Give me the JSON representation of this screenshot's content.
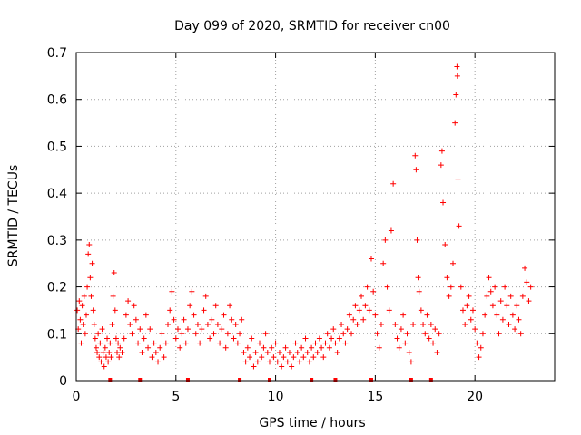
{
  "chart_data": {
    "type": "scatter",
    "title": "Day 099 of 2020, SRMTID for receiver cn00",
    "xlabel": "GPS time / hours",
    "ylabel": "SRMTID / TECUs",
    "xlim": [
      0,
      24
    ],
    "ylim": [
      0,
      0.7
    ],
    "xticks": [
      0,
      5,
      10,
      15,
      20
    ],
    "yticks": [
      0,
      0.1,
      0.2,
      0.3,
      0.4,
      0.5,
      0.6,
      0.7
    ],
    "ytick_labels": [
      "0",
      "0.1",
      "0.2",
      "0.3",
      "0.4",
      "0.5",
      "0.6",
      "0.7"
    ],
    "grid": true,
    "marker": "+",
    "series_color": "#ff0000",
    "series": [
      {
        "name": "SRMTID",
        "points": [
          [
            0.05,
            0.15
          ],
          [
            0.1,
            0.11
          ],
          [
            0.15,
            0.17
          ],
          [
            0.2,
            0.13
          ],
          [
            0.25,
            0.08
          ],
          [
            0.3,
            0.16
          ],
          [
            0.35,
            0.12
          ],
          [
            0.4,
            0.18
          ],
          [
            0.45,
            0.1
          ],
          [
            0.5,
            0.14
          ],
          [
            0.55,
            0.2
          ],
          [
            0.6,
            0.27
          ],
          [
            0.65,
            0.29
          ],
          [
            0.7,
            0.22
          ],
          [
            0.75,
            0.18
          ],
          [
            0.8,
            0.25
          ],
          [
            0.85,
            0.15
          ],
          [
            0.9,
            0.12
          ],
          [
            0.95,
            0.09
          ],
          [
            1.0,
            0.07
          ],
          [
            1.05,
            0.06
          ],
          [
            1.1,
            0.1
          ],
          [
            1.15,
            0.05
          ],
          [
            1.2,
            0.08
          ],
          [
            1.25,
            0.04
          ],
          [
            1.3,
            0.11
          ],
          [
            1.35,
            0.06
          ],
          [
            1.4,
            0.03
          ],
          [
            1.45,
            0.07
          ],
          [
            1.5,
            0.05
          ],
          [
            1.55,
            0.09
          ],
          [
            1.6,
            0.04
          ],
          [
            1.65,
            0.06
          ],
          [
            1.7,
            0.08
          ],
          [
            1.75,
            0.05
          ],
          [
            1.8,
            0.12
          ],
          [
            1.85,
            0.18
          ],
          [
            1.9,
            0.23
          ],
          [
            1.95,
            0.15
          ],
          [
            2.0,
            0.09
          ],
          [
            2.05,
            0.06
          ],
          [
            2.1,
            0.08
          ],
          [
            2.15,
            0.05
          ],
          [
            2.2,
            0.07
          ],
          [
            2.3,
            0.06
          ],
          [
            2.4,
            0.09
          ],
          [
            2.5,
            0.14
          ],
          [
            2.6,
            0.17
          ],
          [
            2.7,
            0.12
          ],
          [
            2.8,
            0.1
          ],
          [
            2.9,
            0.16
          ],
          [
            3.0,
            0.13
          ],
          [
            3.1,
            0.08
          ],
          [
            3.2,
            0.11
          ],
          [
            3.3,
            0.06
          ],
          [
            3.4,
            0.09
          ],
          [
            3.5,
            0.14
          ],
          [
            3.6,
            0.07
          ],
          [
            3.7,
            0.11
          ],
          [
            3.8,
            0.05
          ],
          [
            3.9,
            0.08
          ],
          [
            4.0,
            0.06
          ],
          [
            4.1,
            0.04
          ],
          [
            4.2,
            0.07
          ],
          [
            4.3,
            0.1
          ],
          [
            4.4,
            0.05
          ],
          [
            4.5,
            0.08
          ],
          [
            4.6,
            0.12
          ],
          [
            4.7,
            0.15
          ],
          [
            4.8,
            0.19
          ],
          [
            4.9,
            0.13
          ],
          [
            5.0,
            0.09
          ],
          [
            5.1,
            0.11
          ],
          [
            5.2,
            0.07
          ],
          [
            5.3,
            0.1
          ],
          [
            5.4,
            0.13
          ],
          [
            5.5,
            0.08
          ],
          [
            5.6,
            0.11
          ],
          [
            5.7,
            0.16
          ],
          [
            5.8,
            0.19
          ],
          [
            5.9,
            0.14
          ],
          [
            6.0,
            0.1
          ],
          [
            6.1,
            0.12
          ],
          [
            6.2,
            0.08
          ],
          [
            6.3,
            0.11
          ],
          [
            6.4,
            0.15
          ],
          [
            6.5,
            0.18
          ],
          [
            6.6,
            0.12
          ],
          [
            6.7,
            0.09
          ],
          [
            6.8,
            0.13
          ],
          [
            6.9,
            0.1
          ],
          [
            7.0,
            0.16
          ],
          [
            7.1,
            0.12
          ],
          [
            7.2,
            0.08
          ],
          [
            7.3,
            0.11
          ],
          [
            7.4,
            0.14
          ],
          [
            7.5,
            0.07
          ],
          [
            7.6,
            0.1
          ],
          [
            7.7,
            0.16
          ],
          [
            7.8,
            0.13
          ],
          [
            7.9,
            0.09
          ],
          [
            8.0,
            0.12
          ],
          [
            8.1,
            0.08
          ],
          [
            8.2,
            0.1
          ],
          [
            8.3,
            0.13
          ],
          [
            8.4,
            0.06
          ],
          [
            8.5,
            0.04
          ],
          [
            8.6,
            0.07
          ],
          [
            8.7,
            0.05
          ],
          [
            8.8,
            0.09
          ],
          [
            8.9,
            0.03
          ],
          [
            9.0,
            0.06
          ],
          [
            9.1,
            0.04
          ],
          [
            9.2,
            0.08
          ],
          [
            9.3,
            0.05
          ],
          [
            9.4,
            0.07
          ],
          [
            9.5,
            0.1
          ],
          [
            9.6,
            0.06
          ],
          [
            9.7,
            0.04
          ],
          [
            9.8,
            0.07
          ],
          [
            9.9,
            0.05
          ],
          [
            10.0,
            0.08
          ],
          [
            10.1,
            0.04
          ],
          [
            10.2,
            0.06
          ],
          [
            10.3,
            0.03
          ],
          [
            10.4,
            0.05
          ],
          [
            10.5,
            0.07
          ],
          [
            10.6,
            0.04
          ],
          [
            10.7,
            0.06
          ],
          [
            10.8,
            0.03
          ],
          [
            10.9,
            0.05
          ],
          [
            11.0,
            0.08
          ],
          [
            11.1,
            0.06
          ],
          [
            11.2,
            0.04
          ],
          [
            11.3,
            0.07
          ],
          [
            11.4,
            0.05
          ],
          [
            11.5,
            0.09
          ],
          [
            11.6,
            0.06
          ],
          [
            11.7,
            0.04
          ],
          [
            11.8,
            0.07
          ],
          [
            11.9,
            0.05
          ],
          [
            12.0,
            0.08
          ],
          [
            12.1,
            0.06
          ],
          [
            12.2,
            0.09
          ],
          [
            12.3,
            0.07
          ],
          [
            12.4,
            0.05
          ],
          [
            12.5,
            0.08
          ],
          [
            12.6,
            0.1
          ],
          [
            12.7,
            0.07
          ],
          [
            12.8,
            0.09
          ],
          [
            12.9,
            0.11
          ],
          [
            13.0,
            0.08
          ],
          [
            13.1,
            0.06
          ],
          [
            13.2,
            0.09
          ],
          [
            13.3,
            0.12
          ],
          [
            13.4,
            0.1
          ],
          [
            13.5,
            0.08
          ],
          [
            13.6,
            0.11
          ],
          [
            13.7,
            0.14
          ],
          [
            13.8,
            0.1
          ],
          [
            13.9,
            0.13
          ],
          [
            14.0,
            0.16
          ],
          [
            14.1,
            0.12
          ],
          [
            14.2,
            0.15
          ],
          [
            14.3,
            0.18
          ],
          [
            14.4,
            0.13
          ],
          [
            14.5,
            0.16
          ],
          [
            14.6,
            0.2
          ],
          [
            14.7,
            0.15
          ],
          [
            14.8,
            0.26
          ],
          [
            14.9,
            0.19
          ],
          [
            15.0,
            0.14
          ],
          [
            15.1,
            0.1
          ],
          [
            15.2,
            0.07
          ],
          [
            15.3,
            0.12
          ],
          [
            15.4,
            0.25
          ],
          [
            15.5,
            0.3
          ],
          [
            15.6,
            0.2
          ],
          [
            15.7,
            0.15
          ],
          [
            15.8,
            0.32
          ],
          [
            15.9,
            0.42
          ],
          [
            16.0,
            0.12
          ],
          [
            16.1,
            0.09
          ],
          [
            16.2,
            0.07
          ],
          [
            16.3,
            0.11
          ],
          [
            16.4,
            0.14
          ],
          [
            16.5,
            0.08
          ],
          [
            16.6,
            0.1
          ],
          [
            16.7,
            0.06
          ],
          [
            16.8,
            0.04
          ],
          [
            16.9,
            0.12
          ],
          [
            17.0,
            0.48
          ],
          [
            17.05,
            0.45
          ],
          [
            17.1,
            0.3
          ],
          [
            17.15,
            0.22
          ],
          [
            17.2,
            0.19
          ],
          [
            17.3,
            0.15
          ],
          [
            17.4,
            0.12
          ],
          [
            17.5,
            0.1
          ],
          [
            17.6,
            0.14
          ],
          [
            17.7,
            0.09
          ],
          [
            17.8,
            0.12
          ],
          [
            17.9,
            0.08
          ],
          [
            18.0,
            0.11
          ],
          [
            18.1,
            0.06
          ],
          [
            18.2,
            0.1
          ],
          [
            18.3,
            0.46
          ],
          [
            18.35,
            0.49
          ],
          [
            18.4,
            0.38
          ],
          [
            18.5,
            0.29
          ],
          [
            18.6,
            0.22
          ],
          [
            18.7,
            0.18
          ],
          [
            18.8,
            0.2
          ],
          [
            18.9,
            0.25
          ],
          [
            19.0,
            0.55
          ],
          [
            19.05,
            0.61
          ],
          [
            19.1,
            0.67
          ],
          [
            19.12,
            0.65
          ],
          [
            19.15,
            0.43
          ],
          [
            19.2,
            0.33
          ],
          [
            19.3,
            0.2
          ],
          [
            19.4,
            0.15
          ],
          [
            19.5,
            0.12
          ],
          [
            19.6,
            0.16
          ],
          [
            19.7,
            0.18
          ],
          [
            19.8,
            0.13
          ],
          [
            19.9,
            0.15
          ],
          [
            20.0,
            0.11
          ],
          [
            20.1,
            0.08
          ],
          [
            20.2,
            0.05
          ],
          [
            20.3,
            0.07
          ],
          [
            20.4,
            0.1
          ],
          [
            20.5,
            0.14
          ],
          [
            20.6,
            0.18
          ],
          [
            20.7,
            0.22
          ],
          [
            20.8,
            0.19
          ],
          [
            20.9,
            0.16
          ],
          [
            21.0,
            0.2
          ],
          [
            21.1,
            0.14
          ],
          [
            21.2,
            0.1
          ],
          [
            21.3,
            0.17
          ],
          [
            21.4,
            0.13
          ],
          [
            21.5,
            0.2
          ],
          [
            21.6,
            0.16
          ],
          [
            21.7,
            0.12
          ],
          [
            21.8,
            0.18
          ],
          [
            21.9,
            0.14
          ],
          [
            22.0,
            0.11
          ],
          [
            22.1,
            0.16
          ],
          [
            22.2,
            0.13
          ],
          [
            22.3,
            0.1
          ],
          [
            22.4,
            0.18
          ],
          [
            22.5,
            0.24
          ],
          [
            22.6,
            0.21
          ],
          [
            22.7,
            0.17
          ],
          [
            22.8,
            0.2
          ]
        ]
      }
    ],
    "baseline_markers_x": [
      1.7,
      3.2,
      5.6,
      8.2,
      9.7,
      11.8,
      13.0,
      14.8,
      16.8,
      17.8
    ]
  }
}
